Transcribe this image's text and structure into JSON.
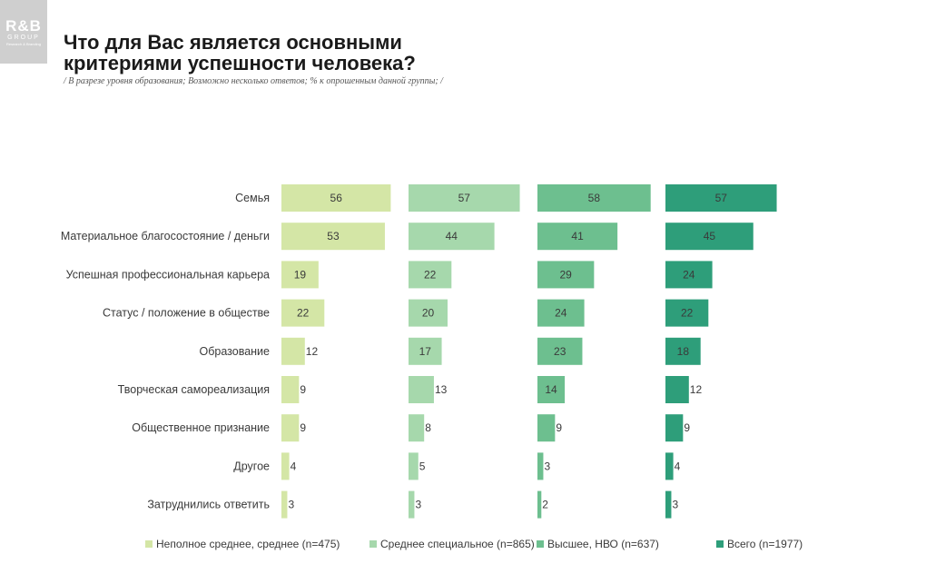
{
  "logo": {
    "main": "R&B",
    "sub": "GROUP",
    "tag": "Research & Branding"
  },
  "header": {
    "title_line1": "Что для Вас является основными",
    "title_line2": "критериями успешности человека?",
    "subtitle": "/ В разрезе уровня образования; Возможно несколько ответов; % к опрошенным данной группы; /"
  },
  "chart_data": {
    "type": "bar",
    "orientation": "horizontal",
    "title": "Что для Вас является основными критериями успешности человека?",
    "categories": [
      "Семья",
      "Материальное благосостояние / деньги",
      "Успешная профессиональная карьера",
      "Статус / положение в обществе",
      "Образование",
      "Творческая самореализация",
      "Общественное признание",
      "Другое",
      "Затруднились ответить"
    ],
    "series": [
      {
        "name": "Неполное среднее, среднее (n=475)",
        "color": "#d4e6a6",
        "values": [
          56,
          53,
          19,
          22,
          12,
          9,
          9,
          4,
          3
        ]
      },
      {
        "name": "Среднее специальное (n=865)",
        "color": "#a6d8ac",
        "values": [
          57,
          44,
          22,
          20,
          17,
          13,
          8,
          5,
          3
        ]
      },
      {
        "name": "Высшее, НВО (n=637)",
        "color": "#6dbf8f",
        "values": [
          58,
          41,
          29,
          24,
          23,
          14,
          9,
          3,
          2
        ]
      },
      {
        "name": "Всего (n=1977)",
        "color": "#2e9e7a",
        "values": [
          57,
          45,
          24,
          22,
          18,
          12,
          9,
          4,
          3
        ]
      }
    ],
    "xlim": [
      0,
      58
    ],
    "legend_position": "bottom"
  }
}
